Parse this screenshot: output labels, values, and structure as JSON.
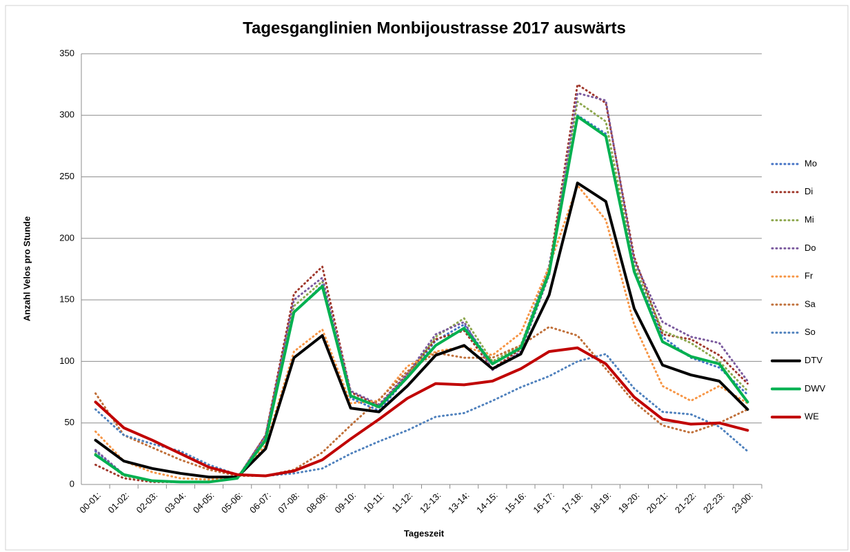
{
  "chart_data": {
    "type": "line",
    "title": "Tagesganglinien Monbijoustrasse 2017 auswärts",
    "x_label": "Tageszeit",
    "y_label": "Anzahl Velos pro Stunde",
    "categories": [
      "00-01:",
      "01-02:",
      "02-03:",
      "03-04:",
      "04-05:",
      "05-06:",
      "06-07:",
      "07-08:",
      "08-09:",
      "09-10:",
      "10-11:",
      "11-12:",
      "12-13:",
      "13-14:",
      "14-15:",
      "15-16:",
      "16-17:",
      "17-18:",
      "18-19:",
      "19-20:",
      "20-21:",
      "21-22:",
      "22-23:",
      "23-00:"
    ],
    "ylim": [
      0,
      350
    ],
    "yticks": [
      0,
      50,
      100,
      150,
      200,
      250,
      300,
      350
    ],
    "grid": true,
    "legend": "right",
    "series": [
      {
        "name": "Mo",
        "color": "#4472c4",
        "style": "dotted",
        "values": [
          27,
          8,
          3,
          2,
          2,
          5,
          37,
          140,
          162,
          70,
          60,
          87,
          117,
          130,
          98,
          112,
          178,
          300,
          285,
          175,
          120,
          103,
          95,
          73
        ]
      },
      {
        "name": "Di",
        "color": "#a0382c",
        "style": "dotted",
        "values": [
          16,
          5,
          2,
          2,
          2,
          5,
          40,
          155,
          177,
          75,
          64,
          90,
          118,
          125,
          94,
          110,
          175,
          325,
          310,
          185,
          122,
          118,
          105,
          82
        ]
      },
      {
        "name": "Mi",
        "color": "#8ea84f",
        "style": "dotted",
        "values": [
          25,
          7,
          3,
          2,
          2,
          5,
          38,
          145,
          165,
          73,
          62,
          88,
          120,
          135,
          100,
          113,
          175,
          311,
          295,
          178,
          125,
          115,
          100,
          76
        ]
      },
      {
        "name": "Do",
        "color": "#7b5a9e",
        "style": "dotted",
        "values": [
          28,
          8,
          3,
          2,
          2,
          5,
          40,
          150,
          168,
          76,
          65,
          90,
          122,
          132,
          93,
          108,
          170,
          318,
          312,
          182,
          132,
          120,
          115,
          84
        ]
      },
      {
        "name": "Fr",
        "color": "#f79646",
        "style": "dotted",
        "values": [
          43,
          19,
          10,
          5,
          4,
          5,
          32,
          108,
          126,
          66,
          68,
          96,
          108,
          112,
          105,
          123,
          177,
          243,
          215,
          130,
          80,
          68,
          80,
          66
        ]
      },
      {
        "name": "Sa",
        "color": "#c0703a",
        "style": "dotted",
        "values": [
          74,
          40,
          30,
          20,
          12,
          7,
          7,
          12,
          26,
          48,
          69,
          92,
          107,
          103,
          103,
          113,
          128,
          121,
          94,
          67,
          48,
          42,
          50,
          61
        ]
      },
      {
        "name": "So",
        "color": "#4f81bd",
        "style": "dotted",
        "values": [
          61,
          40,
          33,
          27,
          16,
          8,
          7,
          9,
          13,
          25,
          35,
          44,
          55,
          58,
          68,
          79,
          88,
          100,
          106,
          78,
          59,
          57,
          47,
          27
        ]
      },
      {
        "name": "DTV",
        "color": "#000000",
        "style": "solid",
        "values": [
          36,
          19,
          13,
          9,
          6,
          6,
          29,
          103,
          121,
          62,
          59,
          80,
          105,
          113,
          94,
          106,
          154,
          245,
          230,
          143,
          97,
          89,
          84,
          61
        ]
      },
      {
        "name": "DWV",
        "color": "#00b050",
        "style": "solid",
        "values": [
          24,
          8,
          3,
          2,
          2,
          5,
          36,
          140,
          161,
          72,
          63,
          87,
          113,
          127,
          98,
          111,
          172,
          299,
          283,
          173,
          116,
          104,
          98,
          67
        ]
      },
      {
        "name": "WE",
        "color": "#c00000",
        "style": "solid",
        "values": [
          67,
          46,
          36,
          25,
          14,
          8,
          7,
          11,
          20,
          37,
          53,
          70,
          82,
          81,
          84,
          94,
          108,
          111,
          98,
          71,
          53,
          49,
          50,
          44
        ]
      }
    ]
  }
}
